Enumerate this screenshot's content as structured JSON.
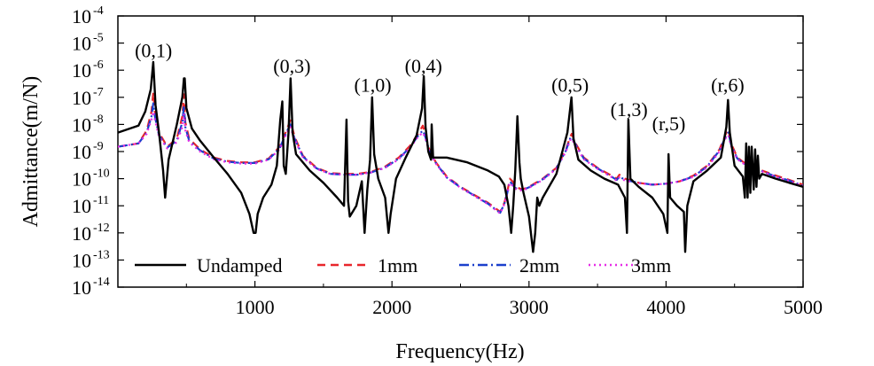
{
  "chart_data": {
    "type": "line",
    "title": "",
    "xlabel": "Frequency(Hz)",
    "ylabel": "Admittance(m/N)",
    "xlim": [
      0,
      5000
    ],
    "ylim_log10": [
      -14,
      -4
    ],
    "y_scale": "log",
    "x_ticks": [
      1000,
      2000,
      3000,
      4000,
      5000
    ],
    "x_tick_labels": [
      "1000",
      "2000",
      "3000",
      "4000",
      "5000"
    ],
    "y_ticks_exponent": [
      -14,
      -13,
      -12,
      -11,
      -10,
      -9,
      -8,
      -7,
      -6,
      -5,
      -4
    ],
    "y_tick_base": "10",
    "y_tick_labels": [
      "-14",
      "-13",
      "-12",
      "-11",
      "-10",
      "-9",
      "-8",
      "-7",
      "-6",
      "-5",
      "-4"
    ],
    "grid": false,
    "legend_position": "bottom-left",
    "annotations": [
      {
        "text": "(0,1)",
        "x": 260,
        "y": 3e-06
      },
      {
        "text": "(0,3)",
        "x": 1270,
        "y": 8e-07
      },
      {
        "text": "(1,0)",
        "x": 1860,
        "y": 1.6e-07
      },
      {
        "text": "(0,4)",
        "x": 2230,
        "y": 8e-07
      },
      {
        "text": "(0,5)",
        "x": 3300,
        "y": 1.6e-07
      },
      {
        "text": "(1,3)",
        "x": 3730,
        "y": 2e-08
      },
      {
        "text": "(r,5)",
        "x": 4020,
        "y": 6e-09
      },
      {
        "text": "(r,6)",
        "x": 4450,
        "y": 1.6e-07
      }
    ],
    "series": [
      {
        "name": "Undamped",
        "color": "#000000",
        "dash": "solid",
        "x": [
          0,
          150,
          200,
          240,
          258,
          275,
          300,
          330,
          345,
          370,
          430,
          470,
          482,
          488,
          500,
          540,
          600,
          700,
          800,
          900,
          960,
          990,
          1005,
          1020,
          1060,
          1120,
          1160,
          1185,
          1200,
          1210,
          1225,
          1245,
          1260,
          1275,
          1300,
          1400,
          1500,
          1600,
          1650,
          1668,
          1680,
          1692,
          1740,
          1780,
          1800,
          1820,
          1840,
          1855,
          1870,
          1900,
          1950,
          1975,
          1990,
          2030,
          2100,
          2180,
          2220,
          2232,
          2245,
          2265,
          2285,
          2290,
          2300,
          2400,
          2550,
          2700,
          2780,
          2820,
          2850,
          2870,
          2885,
          2900,
          2915,
          2930,
          2940,
          2960,
          3000,
          3030,
          3045,
          3060,
          3075,
          3100,
          3200,
          3280,
          3310,
          3325,
          3360,
          3450,
          3550,
          3650,
          3700,
          3715,
          3725,
          3740,
          3800,
          3900,
          3980,
          4010,
          4018,
          4030,
          4080,
          4130,
          4140,
          4155,
          4200,
          4300,
          4400,
          4440,
          4452,
          4465,
          4500,
          4560,
          4575,
          4585,
          4595,
          4605,
          4615,
          4625,
          4640,
          4650,
          4660,
          4670,
          4680,
          4700,
          4800,
          4900,
          5000
        ],
        "y": [
          5e-09,
          9e-09,
          3e-08,
          2e-07,
          2e-06,
          5e-08,
          5e-09,
          2e-10,
          2e-11,
          5e-10,
          1e-08,
          1e-07,
          5e-07,
          5e-07,
          4e-08,
          7e-09,
          2.5e-09,
          6e-10,
          1.5e-10,
          3e-11,
          5e-12,
          1e-12,
          1e-12,
          5e-12,
          2e-11,
          6e-11,
          3e-10,
          1.5e-08,
          7e-08,
          3e-10,
          1.5e-10,
          5e-09,
          5e-07,
          5e-09,
          8e-10,
          2e-10,
          7e-11,
          2e-11,
          1e-11,
          1.5e-08,
          1.5e-11,
          4e-12,
          1e-11,
          8e-11,
          1e-12,
          4e-11,
          5e-10,
          1e-07,
          8e-10,
          1e-10,
          2e-11,
          1e-12,
          5e-12,
          1e-10,
          6e-10,
          4e-09,
          4e-08,
          6e-07,
          8e-09,
          1e-09,
          5e-10,
          1e-08,
          6e-10,
          6e-10,
          4e-10,
          2e-10,
          1.2e-10,
          6e-11,
          1e-11,
          1e-12,
          1e-11,
          2e-10,
          2e-08,
          4e-10,
          1e-10,
          3e-11,
          4e-12,
          2e-13,
          1e-12,
          2e-11,
          1e-11,
          2e-11,
          1.5e-10,
          5e-09,
          1e-07,
          3e-09,
          5e-10,
          2e-10,
          1e-10,
          6e-11,
          2e-11,
          1e-12,
          1.5e-08,
          1e-10,
          5e-11,
          2e-11,
          5e-12,
          1e-12,
          8e-10,
          2e-11,
          1e-11,
          6e-12,
          2e-13,
          1e-11,
          8e-11,
          2e-10,
          6e-10,
          8e-09,
          8e-08,
          5e-09,
          3e-10,
          1.2e-10,
          2e-11,
          2e-09,
          2e-11,
          1.5e-09,
          3e-11,
          1.5e-09,
          4e-11,
          1.2e-09,
          5e-11,
          7e-10,
          1e-10,
          1.5e-10,
          1e-10,
          7e-11,
          5e-11
        ]
      },
      {
        "name": "1mm",
        "color": "#e8262b",
        "dash": "9,6",
        "x": [
          0,
          150,
          210,
          245,
          258,
          270,
          300,
          360,
          430,
          470,
          482,
          492,
          520,
          600,
          700,
          800,
          900,
          1000,
          1100,
          1180,
          1230,
          1258,
          1290,
          1350,
          1450,
          1550,
          1650,
          1750,
          1850,
          1950,
          2050,
          2130,
          2190,
          2225,
          2240,
          2270,
          2320,
          2400,
          2500,
          2600,
          2700,
          2790,
          2820,
          2840,
          2860,
          2880,
          2900,
          2950,
          3000,
          3100,
          3200,
          3270,
          3300,
          3312,
          3340,
          3400,
          3500,
          3600,
          3640,
          3660,
          3700,
          3800,
          3900,
          4000,
          4100,
          4200,
          4300,
          4390,
          4440,
          4455,
          4475,
          4520,
          4600,
          4700,
          4800,
          4900,
          5000
        ],
        "y": [
          1.5e-09,
          2e-09,
          6e-09,
          3e-08,
          1.5e-07,
          3e-08,
          5e-09,
          1.5e-09,
          3e-09,
          2e-08,
          1.3e-07,
          1.2e-08,
          3e-09,
          1.2e-09,
          6e-10,
          4.5e-10,
          4e-10,
          4e-10,
          5.5e-10,
          1.5e-09,
          6e-09,
          1.4e-08,
          3.5e-09,
          7e-10,
          2.5e-10,
          1.6e-10,
          1.5e-10,
          1.5e-10,
          1.8e-10,
          2.8e-10,
          6e-10,
          1.6e-09,
          4.5e-09,
          9e-09,
          5e-09,
          1.3e-09,
          4e-10,
          1.2e-10,
          5e-11,
          2.5e-11,
          1.3e-11,
          6e-12,
          1.3e-11,
          3e-11,
          1e-10,
          8e-11,
          5e-11,
          4e-11,
          5e-11,
          1e-10,
          2.5e-10,
          1.2e-09,
          3.5e-09,
          4.5e-09,
          2e-09,
          6e-10,
          2.5e-10,
          1.3e-10,
          1e-10,
          1.4e-10,
          1e-10,
          7e-11,
          6e-11,
          6.5e-11,
          8e-11,
          1.3e-10,
          3e-10,
          1.2e-09,
          5e-09,
          6e-09,
          2e-09,
          6e-10,
          3e-10,
          2e-10,
          1.3e-10,
          9e-11,
          6e-11
        ]
      },
      {
        "name": "2mm",
        "color": "#1b3fcc",
        "dash": "11,4,2,4",
        "x": [
          0,
          150,
          210,
          245,
          258,
          270,
          300,
          360,
          430,
          470,
          482,
          492,
          520,
          600,
          700,
          800,
          900,
          1000,
          1100,
          1180,
          1230,
          1258,
          1290,
          1350,
          1450,
          1550,
          1650,
          1750,
          1850,
          1950,
          2050,
          2130,
          2190,
          2225,
          2240,
          2270,
          2320,
          2400,
          2500,
          2600,
          2700,
          2790,
          2820,
          2840,
          2860,
          2880,
          2900,
          2950,
          3000,
          3100,
          3200,
          3270,
          3300,
          3312,
          3340,
          3400,
          3500,
          3600,
          3640,
          3660,
          3700,
          3800,
          3900,
          4000,
          4100,
          4200,
          4300,
          4390,
          4440,
          4455,
          4475,
          4520,
          4600,
          4700,
          4800,
          4900,
          5000
        ],
        "y": [
          1.5e-09,
          2e-09,
          5e-09,
          2e-08,
          6e-08,
          2e-08,
          4e-09,
          1.4e-09,
          2.5e-09,
          1.2e-08,
          5e-08,
          8e-09,
          2.5e-09,
          1.1e-09,
          5.5e-10,
          4.2e-10,
          3.8e-10,
          3.8e-10,
          5.2e-10,
          1.3e-09,
          5e-09,
          1e-08,
          3e-09,
          6.5e-10,
          2.4e-10,
          1.5e-10,
          1.4e-10,
          1.4e-10,
          1.7e-10,
          2.6e-10,
          5.5e-10,
          1.4e-09,
          3.8e-09,
          6e-09,
          4e-09,
          1.2e-09,
          3.8e-10,
          1.1e-10,
          4.8e-11,
          2.4e-11,
          1.2e-11,
          5.5e-12,
          1.2e-11,
          2.8e-11,
          8e-11,
          6e-11,
          4.5e-11,
          3.8e-11,
          4.8e-11,
          9.5e-11,
          2.4e-10,
          1.1e-09,
          3e-09,
          3.5e-09,
          1.8e-09,
          5.5e-10,
          2.4e-10,
          1.2e-10,
          9e-11,
          1.2e-10,
          9e-11,
          7e-11,
          6e-11,
          6.5e-11,
          8e-11,
          1.2e-10,
          2.8e-10,
          1.1e-09,
          4e-09,
          5e-09,
          1.8e-09,
          5.5e-10,
          2.8e-10,
          1.9e-10,
          1.2e-10,
          8.5e-11,
          5.5e-11
        ]
      },
      {
        "name": "3mm",
        "color": "#e62ce6",
        "dash": "2,4",
        "x": [
          0,
          150,
          210,
          245,
          258,
          270,
          300,
          360,
          430,
          470,
          482,
          492,
          520,
          600,
          700,
          800,
          900,
          1000,
          1100,
          1180,
          1230,
          1258,
          1290,
          1350,
          1450,
          1550,
          1650,
          1750,
          1850,
          1950,
          2050,
          2130,
          2190,
          2225,
          2240,
          2270,
          2320,
          2400,
          2500,
          2600,
          2700,
          2790,
          2820,
          2840,
          2860,
          2880,
          2900,
          2950,
          3000,
          3100,
          3200,
          3270,
          3300,
          3312,
          3340,
          3400,
          3500,
          3600,
          3640,
          3660,
          3700,
          3800,
          3900,
          4000,
          4100,
          4200,
          4300,
          4390,
          4440,
          4455,
          4475,
          4520,
          4600,
          4700,
          4800,
          4900,
          5000
        ],
        "y": [
          1.5e-09,
          2e-09,
          4.5e-09,
          1.5e-08,
          3e-08,
          1.5e-08,
          3.5e-09,
          1.3e-09,
          2.2e-09,
          8e-09,
          2.5e-08,
          6e-09,
          2.2e-09,
          1e-09,
          5.2e-10,
          4e-10,
          3.6e-10,
          3.6e-10,
          5e-10,
          1.2e-09,
          4.5e-09,
          8e-09,
          2.8e-09,
          6.2e-10,
          2.3e-10,
          1.5e-10,
          1.4e-10,
          1.4e-10,
          1.7e-10,
          2.5e-10,
          5.2e-10,
          1.3e-09,
          3.5e-09,
          5e-09,
          3.5e-09,
          1.1e-09,
          3.6e-10,
          1.1e-10,
          4.6e-11,
          2.3e-11,
          1.15e-11,
          5.2e-12,
          1.15e-11,
          2.6e-11,
          7e-11,
          5.5e-11,
          4.2e-11,
          3.6e-11,
          4.6e-11,
          9e-11,
          2.3e-10,
          1e-09,
          2.6e-09,
          3e-09,
          1.6e-09,
          5.2e-10,
          2.3e-10,
          1.15e-10,
          8.5e-11,
          1.1e-10,
          8.5e-11,
          6.8e-11,
          6e-11,
          6.5e-11,
          8e-11,
          1.15e-10,
          2.6e-10,
          1e-09,
          3.5e-09,
          4e-09,
          1.6e-09,
          5.2e-10,
          2.7e-10,
          1.85e-10,
          1.15e-10,
          8.2e-11,
          5.2e-11
        ]
      }
    ]
  }
}
